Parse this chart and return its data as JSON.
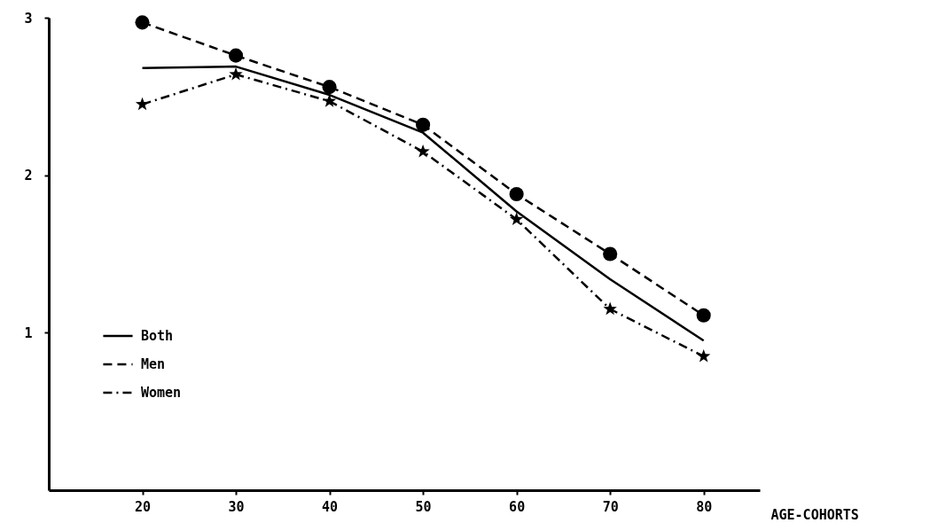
{
  "chart_data": {
    "type": "line",
    "xlabel": "AGE-COHORTS",
    "x": [
      20,
      30,
      40,
      50,
      60,
      70,
      80
    ],
    "xlim": [
      10,
      86
    ],
    "xticks": [
      20,
      30,
      40,
      50,
      60,
      70,
      80
    ],
    "ylim": [
      0,
      3
    ],
    "yticks": [
      1,
      2,
      3
    ],
    "grid": false,
    "legend": "left",
    "series": [
      {
        "name": "Both",
        "color": "#000000",
        "line_style": "solid",
        "marker": "none",
        "values": [
          2.68,
          2.69,
          2.51,
          2.27,
          1.77,
          1.34,
          0.95
        ]
      },
      {
        "name": "Men",
        "color": "#000000",
        "line_style": "dashed",
        "marker": "circle",
        "values": [
          2.97,
          2.76,
          2.56,
          2.32,
          1.88,
          1.5,
          1.11
        ]
      },
      {
        "name": "Women",
        "color": "#000000",
        "line_style": "dashdot",
        "marker": "star",
        "values": [
          2.45,
          2.64,
          2.47,
          2.15,
          1.72,
          1.15,
          0.85
        ]
      }
    ]
  }
}
